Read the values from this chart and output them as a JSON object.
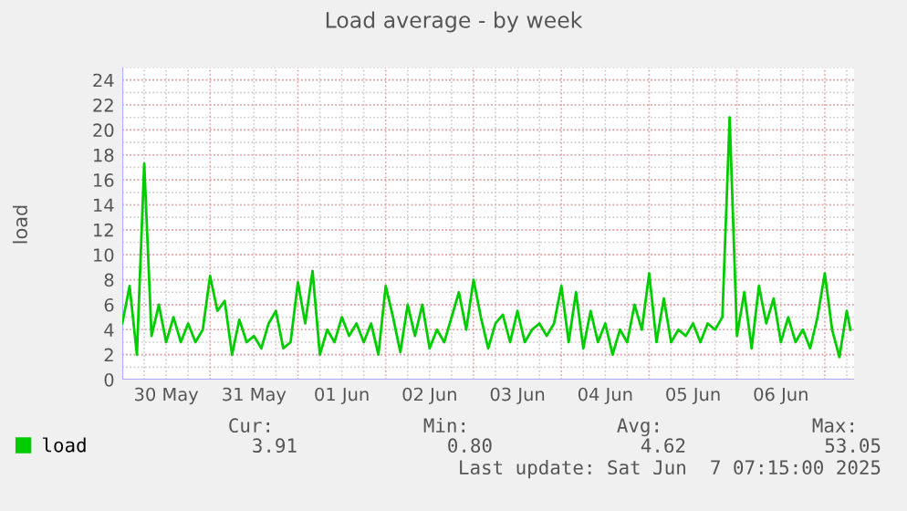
{
  "chart_data": {
    "type": "line",
    "title": "Load average - by week",
    "ylabel": "load",
    "x": [
      "2025-05-30T00:00",
      "2025-05-30T02:00",
      "2025-05-30T04:00",
      "2025-05-30T06:00",
      "2025-05-30T08:00",
      "2025-05-30T10:00",
      "2025-05-30T12:00",
      "2025-05-30T14:00",
      "2025-05-30T16:00",
      "2025-05-30T18:00",
      "2025-05-30T20:00",
      "2025-05-30T22:00",
      "2025-05-31T00:00",
      "2025-05-31T02:00",
      "2025-05-31T04:00",
      "2025-05-31T06:00",
      "2025-05-31T08:00",
      "2025-05-31T10:00",
      "2025-05-31T12:00",
      "2025-05-31T14:00",
      "2025-05-31T16:00",
      "2025-05-31T18:00",
      "2025-05-31T20:00",
      "2025-05-31T22:00",
      "2025-06-01T00:00",
      "2025-06-01T02:00",
      "2025-06-01T04:00",
      "2025-06-01T06:00",
      "2025-06-01T08:00",
      "2025-06-01T10:00",
      "2025-06-01T12:00",
      "2025-06-01T14:00",
      "2025-06-01T16:00",
      "2025-06-01T18:00",
      "2025-06-01T20:00",
      "2025-06-01T22:00",
      "2025-06-02T00:00",
      "2025-06-02T02:00",
      "2025-06-02T04:00",
      "2025-06-02T06:00",
      "2025-06-02T08:00",
      "2025-06-02T10:00",
      "2025-06-02T12:00",
      "2025-06-02T14:00",
      "2025-06-02T16:00",
      "2025-06-02T18:00",
      "2025-06-02T20:00",
      "2025-06-02T22:00",
      "2025-06-03T00:00",
      "2025-06-03T02:00",
      "2025-06-03T04:00",
      "2025-06-03T06:00",
      "2025-06-03T08:00",
      "2025-06-03T10:00",
      "2025-06-03T12:00",
      "2025-06-03T14:00",
      "2025-06-03T16:00",
      "2025-06-03T18:00",
      "2025-06-03T20:00",
      "2025-06-03T22:00",
      "2025-06-04T00:00",
      "2025-06-04T02:00",
      "2025-06-04T04:00",
      "2025-06-04T06:00",
      "2025-06-04T08:00",
      "2025-06-04T10:00",
      "2025-06-04T12:00",
      "2025-06-04T14:00",
      "2025-06-04T16:00",
      "2025-06-04T18:00",
      "2025-06-04T20:00",
      "2025-06-04T22:00",
      "2025-06-05T00:00",
      "2025-06-05T02:00",
      "2025-06-05T04:00",
      "2025-06-05T06:00",
      "2025-06-05T08:00",
      "2025-06-05T10:00",
      "2025-06-05T12:00",
      "2025-06-05T14:00",
      "2025-06-05T16:00",
      "2025-06-05T18:00",
      "2025-06-05T20:00",
      "2025-06-05T22:00",
      "2025-06-06T00:00",
      "2025-06-06T02:00",
      "2025-06-06T04:00",
      "2025-06-06T06:00",
      "2025-06-06T08:00",
      "2025-06-06T10:00",
      "2025-06-06T12:00",
      "2025-06-06T14:00",
      "2025-06-06T16:00",
      "2025-06-06T18:00",
      "2025-06-06T20:00",
      "2025-06-06T22:00",
      "2025-06-07T00:00",
      "2025-06-07T02:00",
      "2025-06-07T04:00",
      "2025-06-07T06:00",
      "2025-06-07T07:00"
    ],
    "series": [
      {
        "name": "load",
        "color": "#00cc00",
        "values": [
          4.5,
          7.5,
          2,
          17.3,
          3.5,
          6,
          3,
          5,
          3,
          4.5,
          3,
          4,
          8.3,
          5.5,
          6.3,
          2,
          4.8,
          3,
          3.5,
          2.5,
          4.5,
          5.5,
          2.5,
          3,
          7.8,
          4.5,
          8.7,
          2,
          4,
          3,
          5,
          3.5,
          4.5,
          3,
          4.5,
          2,
          7.5,
          5,
          2.2,
          6,
          3.5,
          6,
          2.5,
          4,
          3,
          5,
          7,
          4,
          8,
          5,
          2.5,
          4.5,
          5.2,
          3,
          5.5,
          3,
          4,
          4.5,
          3.5,
          4.5,
          7.5,
          3,
          7,
          2.5,
          5.5,
          3,
          4.5,
          2,
          4,
          3,
          6,
          4,
          8.5,
          3,
          6.5,
          3,
          4,
          3.5,
          4.5,
          3,
          4.5,
          4,
          5,
          21,
          3.5,
          7,
          2.5,
          7.5,
          4.5,
          6.5,
          3,
          5,
          3,
          4,
          2.5,
          5,
          8.5,
          4,
          1.8,
          5.5,
          4
        ]
      }
    ],
    "xlim": [
      "2025-05-30T00:00",
      "2025-06-07T08:00"
    ],
    "xticks": [
      {
        "value": "2025-05-30T12:00",
        "label": "30 May"
      },
      {
        "value": "2025-05-31T12:00",
        "label": "31 May"
      },
      {
        "value": "2025-06-01T12:00",
        "label": "01 Jun"
      },
      {
        "value": "2025-06-02T12:00",
        "label": "02 Jun"
      },
      {
        "value": "2025-06-03T12:00",
        "label": "03 Jun"
      },
      {
        "value": "2025-06-04T12:00",
        "label": "04 Jun"
      },
      {
        "value": "2025-06-05T12:00",
        "label": "05 Jun"
      },
      {
        "value": "2025-06-06T12:00",
        "label": "06 Jun"
      }
    ],
    "ylim": [
      0,
      25
    ],
    "yticks": [
      0,
      2,
      4,
      6,
      8,
      10,
      12,
      14,
      16,
      18,
      20,
      22,
      24
    ],
    "grid": true,
    "legend": "bottom left",
    "line_style": "solid",
    "marker": "none",
    "annotations": [
      "Cur:",
      "Min:",
      "Avg:",
      "Max:",
      "3.91",
      "0.80",
      "4.62",
      "53.05",
      "Last update: Sat Jun  7 07:15:00 2025"
    ]
  }
}
